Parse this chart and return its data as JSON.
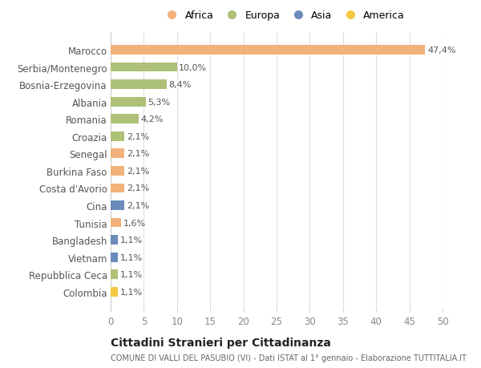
{
  "categories": [
    "Marocco",
    "Serbia/Montenegro",
    "Bosnia-Erzegovina",
    "Albania",
    "Romania",
    "Croazia",
    "Senegal",
    "Burkina Faso",
    "Costa d'Avorio",
    "Cina",
    "Tunisia",
    "Bangladesh",
    "Vietnam",
    "Repubblica Ceca",
    "Colombia"
  ],
  "values": [
    47.4,
    10.0,
    8.4,
    5.3,
    4.2,
    2.1,
    2.1,
    2.1,
    2.1,
    2.1,
    1.6,
    1.1,
    1.1,
    1.1,
    1.1
  ],
  "labels": [
    "47,4%",
    "10,0%",
    "8,4%",
    "5,3%",
    "4,2%",
    "2,1%",
    "2,1%",
    "2,1%",
    "2,1%",
    "2,1%",
    "1,6%",
    "1,1%",
    "1,1%",
    "1,1%",
    "1,1%"
  ],
  "colors": [
    "#f0b27a",
    "#adc178",
    "#adc178",
    "#adc178",
    "#adc178",
    "#adc178",
    "#f0b27a",
    "#f0b27a",
    "#f0b27a",
    "#6b8cba",
    "#f0b27a",
    "#6b8cba",
    "#6b8cba",
    "#adc178",
    "#f5c842"
  ],
  "legend_labels": [
    "Africa",
    "Europa",
    "Asia",
    "America"
  ],
  "legend_colors": [
    "#f0b27a",
    "#adc178",
    "#6b8cba",
    "#f5c842"
  ],
  "title": "Cittadini Stranieri per Cittadinanza",
  "subtitle": "COMUNE DI VALLI DEL PASUBIO (VI) - Dati ISTAT al 1° gennaio - Elaborazione TUTTITALIA.IT",
  "xlim": [
    0,
    50
  ],
  "xticks": [
    0,
    5,
    10,
    15,
    20,
    25,
    30,
    35,
    40,
    45,
    50
  ],
  "background_color": "#ffffff",
  "grid_color": "#e0e0e0",
  "bar_height": 0.55
}
